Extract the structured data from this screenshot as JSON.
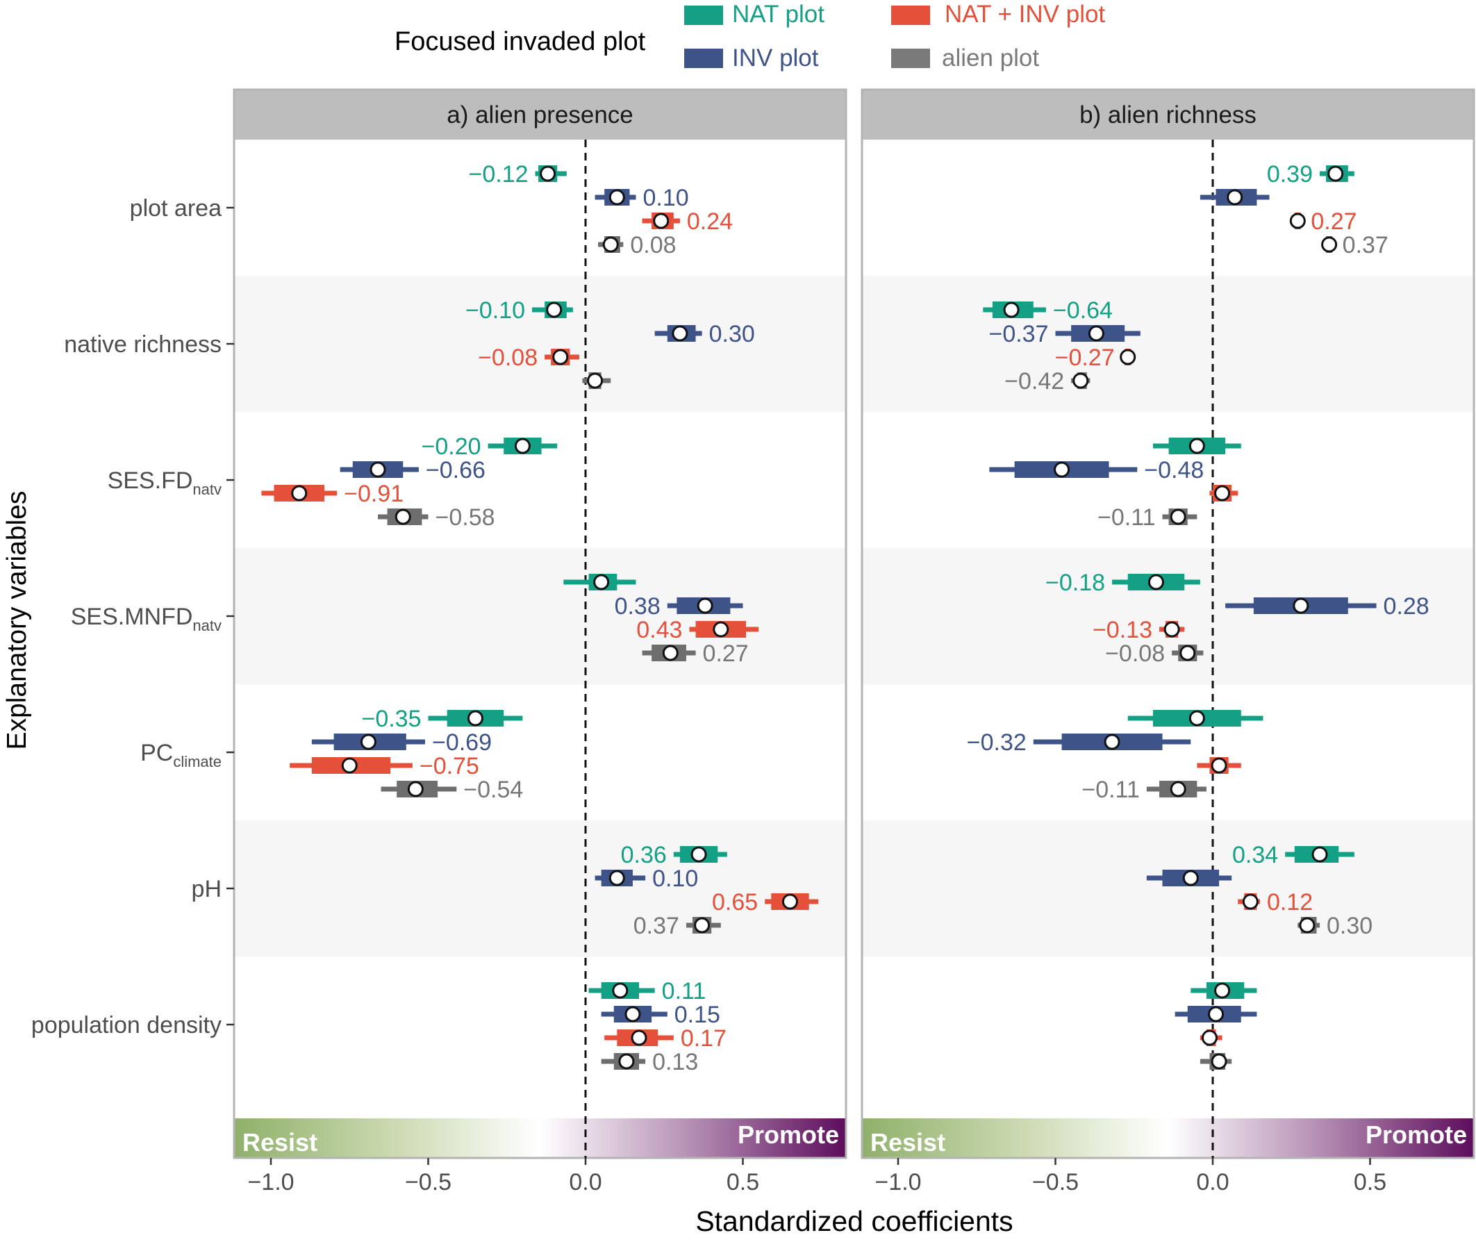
{
  "legend": {
    "title": "Focused invaded plot",
    "items": [
      {
        "label": "NAT plot",
        "color": "#14a085"
      },
      {
        "label": "INV plot",
        "color": "#3e5387"
      },
      {
        "label": "NAT + INV plot",
        "color": "#e4503a"
      },
      {
        "label": "alien plot",
        "color": "#7a7a7a"
      }
    ]
  },
  "colors": {
    "NAT plot": "#14a085",
    "INV plot": "#3e5387",
    "NAT + INV plot": "#e4503a",
    "alien plot": "#6e6e6e",
    "label_alien": "#777777",
    "strip_bg": "#bdbdbd",
    "band_bg": "#f6f6f6",
    "resist": "#8fb06a",
    "promote": "#5c0d5c"
  },
  "axis": {
    "ylabel": "Explanatory variables",
    "xlabel": "Standardized coefficients",
    "ticks": [
      {
        "value": -1.0,
        "label": "−1.0"
      },
      {
        "value": -0.5,
        "label": "−0.5"
      },
      {
        "value": 0.0,
        "label": "0.0"
      },
      {
        "value": 0.5,
        "label": "0.5"
      }
    ],
    "resist_label": "Resist",
    "promote_label": "Promote"
  },
  "chart_data": {
    "type": "forest",
    "xlim": [
      -1.12,
      0.82
    ],
    "variables": [
      {
        "name": "plot area",
        "sub": ""
      },
      {
        "name": "native richness",
        "sub": ""
      },
      {
        "name": "SES.FD",
        "sub": "natv"
      },
      {
        "name": "SES.MNFD",
        "sub": "natv"
      },
      {
        "name": "PC",
        "sub": "climate"
      },
      {
        "name": "pH",
        "sub": ""
      },
      {
        "name": "population density",
        "sub": ""
      }
    ],
    "series_order": [
      "NAT plot",
      "INV plot",
      "NAT + INV plot",
      "alien plot"
    ],
    "panels": [
      {
        "title": "a) alien presence",
        "rows": [
          [
            {
              "est": -0.12,
              "ci50": [
                -0.15,
                -0.09
              ],
              "ci95": [
                -0.16,
                -0.06
              ],
              "label": "−0.12",
              "side": "left"
            },
            {
              "est": 0.1,
              "ci50": [
                0.06,
                0.14
              ],
              "ci95": [
                0.03,
                0.16
              ],
              "label": "0.10",
              "side": "right"
            },
            {
              "est": 0.24,
              "ci50": [
                0.21,
                0.28
              ],
              "ci95": [
                0.18,
                0.3
              ],
              "label": "0.24",
              "side": "right"
            },
            {
              "est": 0.08,
              "ci50": [
                0.06,
                0.11
              ],
              "ci95": [
                0.04,
                0.12
              ],
              "label": "0.08",
              "side": "right"
            }
          ],
          [
            {
              "est": -0.1,
              "ci50": [
                -0.13,
                -0.06
              ],
              "ci95": [
                -0.17,
                -0.04
              ],
              "label": "−0.10",
              "side": "left"
            },
            {
              "est": 0.3,
              "ci50": [
                0.26,
                0.35
              ],
              "ci95": [
                0.22,
                0.37
              ],
              "label": "0.30",
              "side": "right"
            },
            {
              "est": -0.08,
              "ci50": [
                -0.11,
                -0.05
              ],
              "ci95": [
                -0.13,
                -0.02
              ],
              "label": "−0.08",
              "side": "left"
            },
            {
              "est": 0.03,
              "ci50": [
                0.01,
                0.05
              ],
              "ci95": [
                -0.01,
                0.08
              ],
              "label": "",
              "side": "right"
            }
          ],
          [
            {
              "est": -0.2,
              "ci50": [
                -0.26,
                -0.14
              ],
              "ci95": [
                -0.31,
                -0.09
              ],
              "label": "−0.20",
              "side": "left"
            },
            {
              "est": -0.66,
              "ci50": [
                -0.74,
                -0.58
              ],
              "ci95": [
                -0.78,
                -0.53
              ],
              "label": "−0.66",
              "side": "right"
            },
            {
              "est": -0.91,
              "ci50": [
                -0.99,
                -0.83
              ],
              "ci95": [
                -1.03,
                -0.79
              ],
              "label": "−0.91",
              "side": "right"
            },
            {
              "est": -0.58,
              "ci50": [
                -0.63,
                -0.52
              ],
              "ci95": [
                -0.66,
                -0.5
              ],
              "label": "−0.58",
              "side": "right"
            }
          ],
          [
            {
              "est": 0.05,
              "ci50": [
                0.01,
                0.1
              ],
              "ci95": [
                -0.07,
                0.16
              ],
              "label": "",
              "side": "right"
            },
            {
              "est": 0.38,
              "ci50": [
                0.29,
                0.46
              ],
              "ci95": [
                0.26,
                0.5
              ],
              "label": "0.38",
              "side": "left"
            },
            {
              "est": 0.43,
              "ci50": [
                0.35,
                0.51
              ],
              "ci95": [
                0.33,
                0.55
              ],
              "label": "0.43",
              "side": "left"
            },
            {
              "est": 0.27,
              "ci50": [
                0.21,
                0.32
              ],
              "ci95": [
                0.18,
                0.35
              ],
              "label": "0.27",
              "side": "right"
            }
          ],
          [
            {
              "est": -0.35,
              "ci50": [
                -0.44,
                -0.26
              ],
              "ci95": [
                -0.5,
                -0.2
              ],
              "label": "−0.35",
              "side": "left"
            },
            {
              "est": -0.69,
              "ci50": [
                -0.8,
                -0.57
              ],
              "ci95": [
                -0.87,
                -0.51
              ],
              "label": "−0.69",
              "side": "right"
            },
            {
              "est": -0.75,
              "ci50": [
                -0.87,
                -0.62
              ],
              "ci95": [
                -0.94,
                -0.55
              ],
              "label": "−0.75",
              "side": "right"
            },
            {
              "est": -0.54,
              "ci50": [
                -0.6,
                -0.47
              ],
              "ci95": [
                -0.65,
                -0.41
              ],
              "label": "−0.54",
              "side": "right"
            }
          ],
          [
            {
              "est": 0.36,
              "ci50": [
                0.3,
                0.42
              ],
              "ci95": [
                0.28,
                0.45
              ],
              "label": "0.36",
              "side": "left"
            },
            {
              "est": 0.1,
              "ci50": [
                0.05,
                0.15
              ],
              "ci95": [
                0.03,
                0.19
              ],
              "label": "0.10",
              "side": "right"
            },
            {
              "est": 0.65,
              "ci50": [
                0.59,
                0.71
              ],
              "ci95": [
                0.57,
                0.74
              ],
              "label": "0.65",
              "side": "left"
            },
            {
              "est": 0.37,
              "ci50": [
                0.34,
                0.4
              ],
              "ci95": [
                0.32,
                0.43
              ],
              "label": "0.37",
              "side": "left"
            }
          ],
          [
            {
              "est": 0.11,
              "ci50": [
                0.05,
                0.17
              ],
              "ci95": [
                0.01,
                0.22
              ],
              "label": "0.11",
              "side": "right"
            },
            {
              "est": 0.15,
              "ci50": [
                0.09,
                0.21
              ],
              "ci95": [
                0.05,
                0.26
              ],
              "label": "0.15",
              "side": "right"
            },
            {
              "est": 0.17,
              "ci50": [
                0.1,
                0.23
              ],
              "ci95": [
                0.06,
                0.28
              ],
              "label": "0.17",
              "side": "right"
            },
            {
              "est": 0.13,
              "ci50": [
                0.09,
                0.17
              ],
              "ci95": [
                0.05,
                0.19
              ],
              "label": "0.13",
              "side": "right"
            }
          ]
        ]
      },
      {
        "title": "b) alien richness",
        "rows": [
          [
            {
              "est": 0.39,
              "ci50": [
                0.36,
                0.43
              ],
              "ci95": [
                0.34,
                0.45
              ],
              "label": "0.39",
              "side": "left"
            },
            {
              "est": 0.07,
              "ci50": [
                0.01,
                0.14
              ],
              "ci95": [
                -0.04,
                0.18
              ],
              "label": "",
              "side": "right"
            },
            {
              "est": 0.27,
              "ci50": [
                0.26,
                0.28
              ],
              "ci95": [
                0.25,
                0.29
              ],
              "label": "0.27",
              "side": "right"
            },
            {
              "est": 0.37,
              "ci50": [
                0.36,
                0.38
              ],
              "ci95": [
                0.35,
                0.39
              ],
              "label": "0.37",
              "side": "right"
            }
          ],
          [
            {
              "est": -0.64,
              "ci50": [
                -0.7,
                -0.57
              ],
              "ci95": [
                -0.73,
                -0.53
              ],
              "label": "−0.64",
              "side": "right"
            },
            {
              "est": -0.37,
              "ci50": [
                -0.45,
                -0.28
              ],
              "ci95": [
                -0.5,
                -0.23
              ],
              "label": "−0.37",
              "side": "left"
            },
            {
              "est": -0.27,
              "ci50": [
                -0.28,
                -0.26
              ],
              "ci95": [
                -0.29,
                -0.25
              ],
              "label": "−0.27",
              "side": "left"
            },
            {
              "est": -0.42,
              "ci50": [
                -0.43,
                -0.4
              ],
              "ci95": [
                -0.45,
                -0.39
              ],
              "label": "−0.42",
              "side": "left"
            }
          ],
          [
            {
              "est": -0.05,
              "ci50": [
                -0.14,
                0.04
              ],
              "ci95": [
                -0.19,
                0.09
              ],
              "label": "",
              "side": "right"
            },
            {
              "est": -0.48,
              "ci50": [
                -0.63,
                -0.33
              ],
              "ci95": [
                -0.71,
                -0.24
              ],
              "label": "−0.48",
              "side": "right"
            },
            {
              "est": 0.03,
              "ci50": [
                0.0,
                0.06
              ],
              "ci95": [
                -0.01,
                0.08
              ],
              "label": "",
              "side": "right"
            },
            {
              "est": -0.11,
              "ci50": [
                -0.14,
                -0.08
              ],
              "ci95": [
                -0.16,
                -0.05
              ],
              "label": "−0.11",
              "side": "left"
            }
          ],
          [
            {
              "est": -0.18,
              "ci50": [
                -0.27,
                -0.09
              ],
              "ci95": [
                -0.32,
                -0.04
              ],
              "label": "−0.18",
              "side": "left"
            },
            {
              "est": 0.28,
              "ci50": [
                0.13,
                0.43
              ],
              "ci95": [
                0.04,
                0.52
              ],
              "label": "0.28",
              "side": "right"
            },
            {
              "est": -0.13,
              "ci50": [
                -0.15,
                -0.11
              ],
              "ci95": [
                -0.17,
                -0.09
              ],
              "label": "−0.13",
              "side": "left"
            },
            {
              "est": -0.08,
              "ci50": [
                -0.11,
                -0.05
              ],
              "ci95": [
                -0.13,
                -0.03
              ],
              "label": "−0.08",
              "side": "left"
            }
          ],
          [
            {
              "est": -0.05,
              "ci50": [
                -0.19,
                0.09
              ],
              "ci95": [
                -0.27,
                0.16
              ],
              "label": "",
              "side": "right"
            },
            {
              "est": -0.32,
              "ci50": [
                -0.48,
                -0.16
              ],
              "ci95": [
                -0.57,
                -0.07
              ],
              "label": "−0.32",
              "side": "left"
            },
            {
              "est": 0.02,
              "ci50": [
                -0.01,
                0.05
              ],
              "ci95": [
                -0.05,
                0.09
              ],
              "label": "",
              "side": "right"
            },
            {
              "est": -0.11,
              "ci50": [
                -0.17,
                -0.05
              ],
              "ci95": [
                -0.21,
                -0.02
              ],
              "label": "−0.11",
              "side": "left"
            }
          ],
          [
            {
              "est": 0.34,
              "ci50": [
                0.26,
                0.4
              ],
              "ci95": [
                0.23,
                0.45
              ],
              "label": "0.34",
              "side": "left"
            },
            {
              "est": -0.07,
              "ci50": [
                -0.16,
                0.02
              ],
              "ci95": [
                -0.21,
                0.06
              ],
              "label": "",
              "side": "right"
            },
            {
              "est": 0.12,
              "ci50": [
                0.1,
                0.14
              ],
              "ci95": [
                0.08,
                0.15
              ],
              "label": "0.12",
              "side": "right"
            },
            {
              "est": 0.3,
              "ci50": [
                0.28,
                0.33
              ],
              "ci95": [
                0.27,
                0.34
              ],
              "label": "0.30",
              "side": "right"
            }
          ],
          [
            {
              "est": 0.03,
              "ci50": [
                -0.02,
                0.1
              ],
              "ci95": [
                -0.07,
                0.14
              ],
              "label": "",
              "side": "right"
            },
            {
              "est": 0.01,
              "ci50": [
                -0.08,
                0.09
              ],
              "ci95": [
                -0.12,
                0.14
              ],
              "label": "",
              "side": "right"
            },
            {
              "est": -0.01,
              "ci50": [
                -0.02,
                0.01
              ],
              "ci95": [
                -0.04,
                0.03
              ],
              "label": "",
              "side": "right"
            },
            {
              "est": 0.02,
              "ci50": [
                -0.01,
                0.04
              ],
              "ci95": [
                -0.04,
                0.06
              ],
              "label": "",
              "side": "right"
            }
          ]
        ]
      }
    ]
  }
}
